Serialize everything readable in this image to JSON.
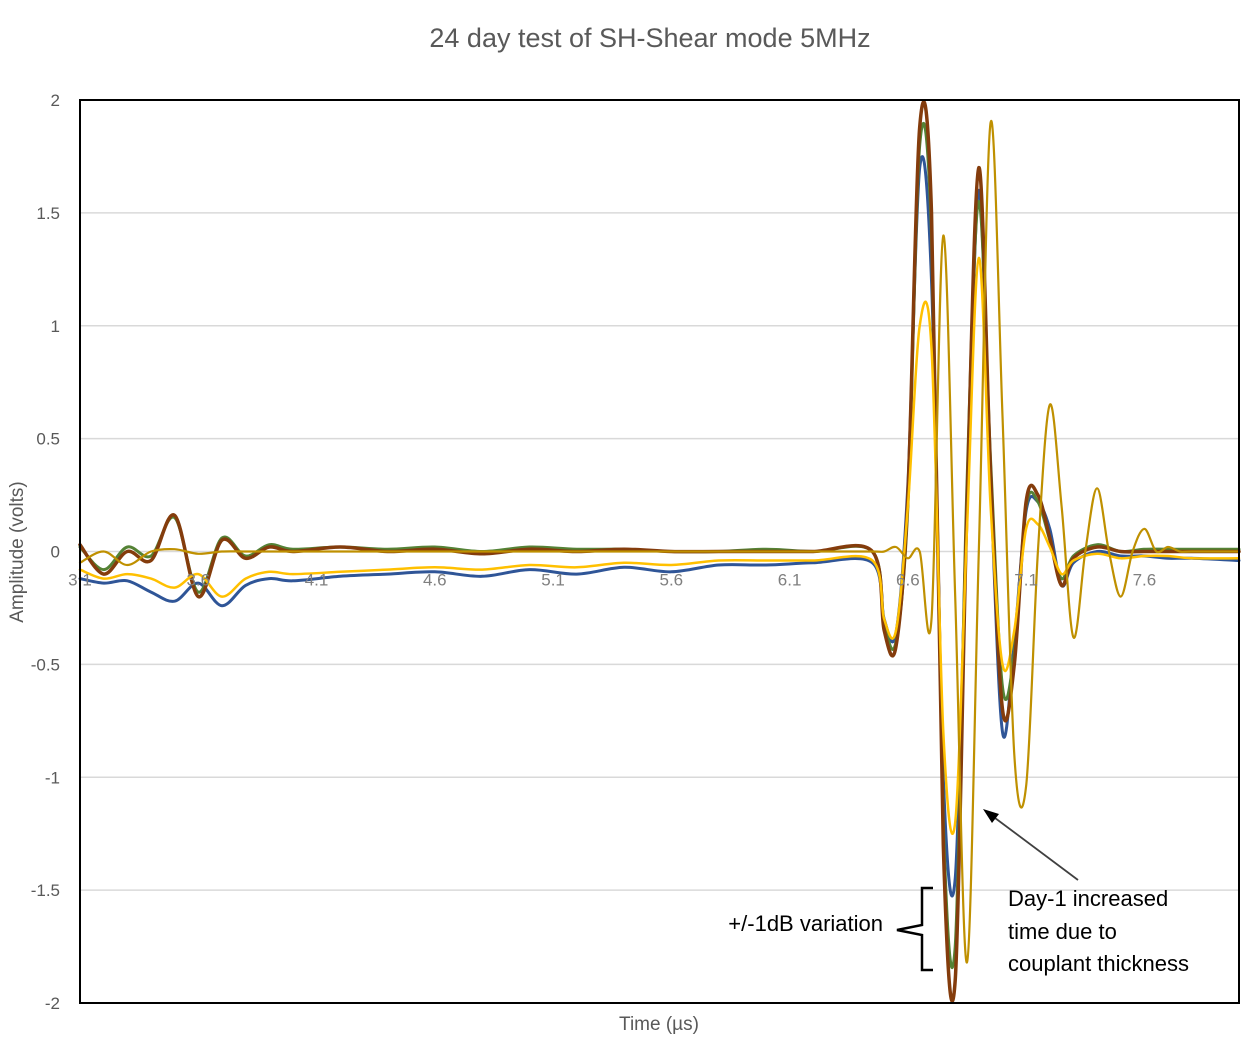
{
  "chart_data": {
    "type": "line",
    "title": "24 day test of SH-Shear mode 5MHz",
    "xlabel": "Time (µs)",
    "ylabel": "Amplitude (volts)",
    "xlim": [
      3.1,
      8.0
    ],
    "ylim": [
      -2,
      2
    ],
    "y_ticks": [
      "2",
      "1.5",
      "1",
      "0.5",
      "0",
      "-0.5",
      "-1",
      "-1.5",
      "-2"
    ],
    "y_tick_values": [
      2,
      1.5,
      1,
      0.5,
      0,
      -0.5,
      -1,
      -1.5,
      -2
    ],
    "x_ticks": [
      "3.1",
      "3.6",
      "4.1",
      "4.6",
      "5.1",
      "5.6",
      "6.1",
      "6.6",
      "7.1",
      "7.6"
    ],
    "x_tick_values": [
      3.1,
      3.6,
      4.1,
      4.6,
      5.1,
      5.6,
      6.1,
      6.6,
      7.1,
      7.6
    ],
    "grid": "horizontal",
    "legend": "none",
    "annotations": {
      "variation": "+/-1dB variation",
      "day1_line1": "Day-1 increased",
      "day1_line2": "time due to",
      "day1_line3": "couplant thickness"
    },
    "series": [
      {
        "color": "#2f5597",
        "x": [
          3.1,
          3.2,
          3.3,
          3.4,
          3.5,
          3.6,
          3.7,
          3.8,
          3.9,
          4.0,
          4.2,
          4.4,
          4.6,
          4.8,
          5.0,
          5.2,
          5.4,
          5.6,
          5.8,
          6.0,
          6.2,
          6.45,
          6.5,
          6.55,
          6.6,
          6.65,
          6.7,
          6.75,
          6.8,
          6.85,
          6.9,
          6.95,
          7.0,
          7.05,
          7.1,
          7.15,
          7.2,
          7.25,
          7.3,
          7.4,
          7.5,
          7.6,
          7.7,
          7.8,
          8.0
        ],
        "y": [
          -0.12,
          -0.14,
          -0.13,
          -0.18,
          -0.22,
          -0.14,
          -0.24,
          -0.15,
          -0.12,
          -0.13,
          -0.11,
          -0.1,
          -0.09,
          -0.11,
          -0.08,
          -0.1,
          -0.07,
          -0.09,
          -0.06,
          -0.06,
          -0.05,
          -0.05,
          -0.3,
          -0.36,
          0.3,
          1.7,
          1.2,
          -1.0,
          -1.45,
          0.2,
          1.6,
          0.3,
          -0.8,
          -0.4,
          0.18,
          0.22,
          0.1,
          -0.15,
          -0.05,
          0.0,
          -0.02,
          -0.02,
          -0.03,
          -0.03,
          -0.04
        ]
      },
      {
        "color": "#548235",
        "x": [
          3.1,
          3.2,
          3.3,
          3.4,
          3.5,
          3.6,
          3.7,
          3.8,
          3.9,
          4.0,
          4.2,
          4.4,
          4.6,
          4.8,
          5.0,
          5.2,
          5.4,
          5.6,
          5.8,
          6.0,
          6.2,
          6.45,
          6.5,
          6.55,
          6.6,
          6.65,
          6.7,
          6.75,
          6.8,
          6.85,
          6.9,
          6.95,
          7.0,
          7.05,
          7.1,
          7.15,
          7.2,
          7.25,
          7.3,
          7.4,
          7.5,
          7.6,
          7.7,
          7.8,
          8.0
        ],
        "y": [
          0.02,
          -0.08,
          0.02,
          -0.02,
          0.15,
          -0.18,
          0.06,
          -0.02,
          0.03,
          0.01,
          0.02,
          0.01,
          0.02,
          0.0,
          0.02,
          0.01,
          0.01,
          0.0,
          0.0,
          0.01,
          0.0,
          0.0,
          -0.32,
          -0.4,
          0.2,
          1.8,
          1.4,
          -1.2,
          -1.75,
          0.3,
          1.55,
          0.4,
          -0.6,
          -0.45,
          0.2,
          0.22,
          0.05,
          -0.12,
          -0.02,
          0.03,
          0.0,
          0.01,
          0.01,
          0.01,
          0.01
        ]
      },
      {
        "color": "#843c0c",
        "x": [
          3.1,
          3.2,
          3.3,
          3.4,
          3.5,
          3.6,
          3.7,
          3.8,
          3.9,
          4.0,
          4.2,
          4.4,
          4.6,
          4.8,
          5.0,
          5.2,
          5.4,
          5.6,
          5.8,
          6.0,
          6.2,
          6.45,
          6.5,
          6.55,
          6.6,
          6.65,
          6.7,
          6.75,
          6.8,
          6.85,
          6.9,
          6.95,
          7.0,
          7.05,
          7.1,
          7.15,
          7.2,
          7.25,
          7.3,
          7.4,
          7.5,
          7.6,
          7.7,
          7.8,
          8.0
        ],
        "y": [
          0.03,
          -0.1,
          0.0,
          -0.04,
          0.16,
          -0.2,
          0.05,
          -0.03,
          0.02,
          0.0,
          0.02,
          0.0,
          0.01,
          -0.01,
          0.01,
          0.0,
          0.01,
          0.0,
          0.0,
          0.0,
          0.0,
          0.0,
          -0.35,
          -0.42,
          0.25,
          1.88,
          1.5,
          -1.3,
          -1.9,
          0.2,
          1.7,
          0.35,
          -0.7,
          -0.5,
          0.22,
          0.25,
          0.06,
          -0.15,
          -0.03,
          0.02,
          0.0,
          0.0,
          0.0,
          0.0,
          0.0
        ]
      },
      {
        "color": "#ffc000",
        "x": [
          3.1,
          3.2,
          3.3,
          3.4,
          3.5,
          3.6,
          3.7,
          3.8,
          3.9,
          4.0,
          4.2,
          4.4,
          4.6,
          4.8,
          5.0,
          5.2,
          5.4,
          5.6,
          5.8,
          6.0,
          6.2,
          6.45,
          6.5,
          6.55,
          6.6,
          6.65,
          6.7,
          6.75,
          6.8,
          6.85,
          6.9,
          6.95,
          7.0,
          7.05,
          7.1,
          7.15,
          7.2,
          7.25,
          7.3,
          7.4,
          7.5,
          7.6,
          7.7,
          7.8,
          8.0
        ],
        "y": [
          -0.08,
          -0.12,
          -0.1,
          -0.12,
          -0.16,
          -0.1,
          -0.2,
          -0.12,
          -0.09,
          -0.1,
          -0.09,
          -0.08,
          -0.07,
          -0.08,
          -0.06,
          -0.07,
          -0.05,
          -0.06,
          -0.04,
          -0.04,
          -0.04,
          -0.04,
          -0.3,
          -0.35,
          0.2,
          1.0,
          0.9,
          -0.8,
          -1.2,
          0.1,
          1.3,
          0.2,
          -0.5,
          -0.35,
          0.1,
          0.12,
          0.02,
          -0.1,
          -0.04,
          -0.01,
          -0.03,
          -0.02,
          -0.02,
          -0.03,
          -0.03
        ]
      },
      {
        "color": "#bf9000",
        "x": [
          3.1,
          3.2,
          3.3,
          3.4,
          3.5,
          3.6,
          3.7,
          3.8,
          3.9,
          4.0,
          4.2,
          4.4,
          4.6,
          4.8,
          5.0,
          5.2,
          5.4,
          5.6,
          5.8,
          6.0,
          6.2,
          6.45,
          6.5,
          6.55,
          6.6,
          6.65,
          6.7,
          6.75,
          6.8,
          6.85,
          6.9,
          6.95,
          7.0,
          7.05,
          7.1,
          7.15,
          7.2,
          7.25,
          7.3,
          7.35,
          7.4,
          7.45,
          7.5,
          7.55,
          7.6,
          7.65,
          7.7,
          7.75,
          7.8,
          8.0
        ],
        "y": [
          -0.05,
          0.0,
          -0.06,
          0.0,
          0.01,
          -0.01,
          0.0,
          0.0,
          0.0,
          0.0,
          0.0,
          0.0,
          0.0,
          0.0,
          0.0,
          0.0,
          0.0,
          0.0,
          0.0,
          0.0,
          0.0,
          0.0,
          0.0,
          0.02,
          -0.03,
          0.0,
          -0.3,
          1.4,
          -0.2,
          -1.82,
          0.0,
          1.9,
          0.6,
          -0.9,
          -1.04,
          0.0,
          0.65,
          0.2,
          -0.38,
          0.0,
          0.28,
          0.0,
          -0.2,
          0.0,
          0.1,
          0.0,
          0.02,
          0.0,
          0.0,
          0.0
        ]
      }
    ]
  }
}
